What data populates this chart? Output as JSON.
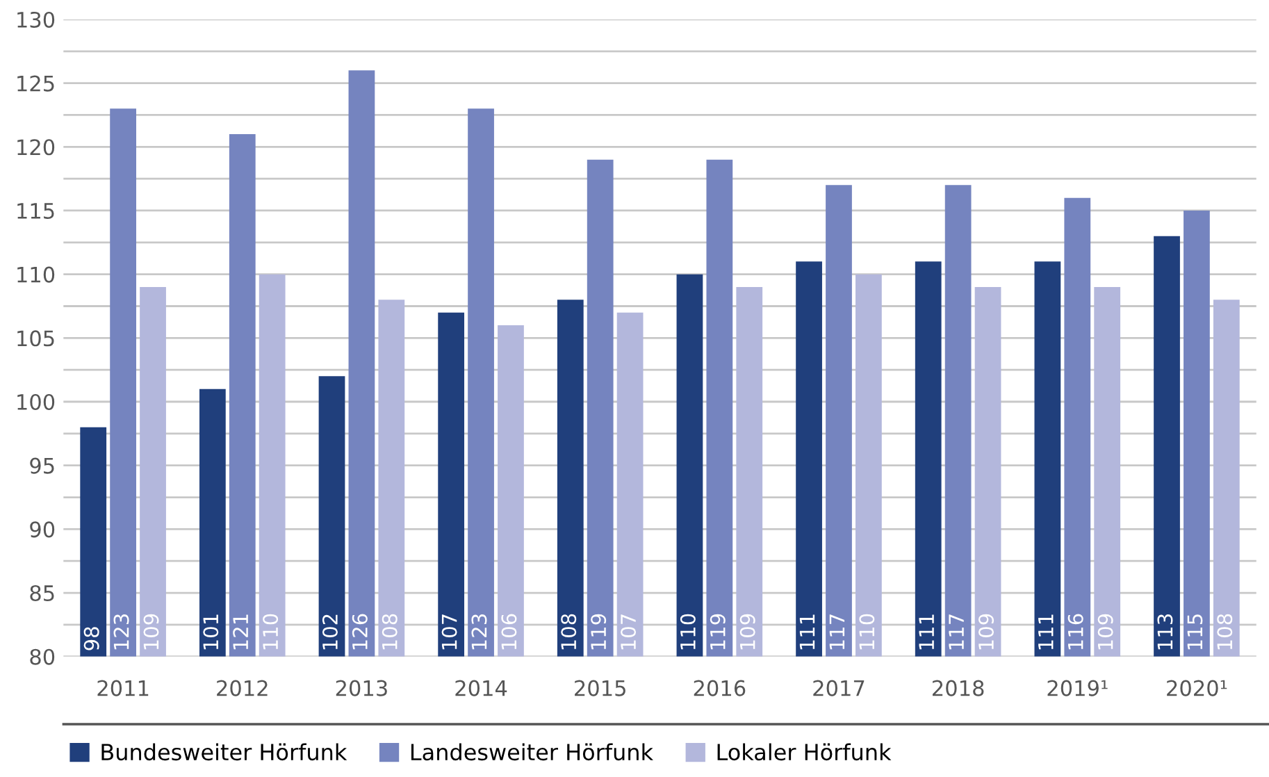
{
  "chart_data": {
    "type": "bar",
    "categories": [
      "2011",
      "2012",
      "2013",
      "2014",
      "2015",
      "2016",
      "2017",
      "2018",
      "2019¹",
      "2020¹"
    ],
    "series": [
      {
        "name": "Bundesweiter Hörfunk",
        "color": "#203f7c",
        "values": [
          98,
          101,
          102,
          107,
          108,
          110,
          111,
          111,
          111,
          113
        ]
      },
      {
        "name": "Landesweiter Hörfunk",
        "color": "#7584bf",
        "values": [
          123,
          121,
          126,
          123,
          119,
          119,
          117,
          117,
          116,
          115
        ]
      },
      {
        "name": "Lokaler Hörfunk",
        "color": "#b3b7dc",
        "values": [
          109,
          110,
          108,
          106,
          107,
          109,
          110,
          109,
          109,
          108
        ]
      }
    ],
    "ylim": [
      80,
      130
    ],
    "yticks": [
      80,
      {
        "value": 82.5,
        "label": null
      },
      85,
      {
        "value": 87.5,
        "label": null
      },
      90,
      {
        "value": 92.5,
        "label": null
      },
      95,
      {
        "value": 97.5,
        "label": null
      },
      100,
      {
        "value": 102.5,
        "label": null
      },
      105,
      {
        "value": 107.5,
        "label": null
      },
      110,
      {
        "value": 112.5,
        "label": null
      },
      115,
      {
        "value": 117.5,
        "label": null
      },
      120,
      {
        "value": 122.5,
        "label": null
      },
      125,
      {
        "value": 127.5,
        "label": null
      },
      130
    ],
    "grid": "y",
    "legend": "bottom left",
    "data_labels": true
  }
}
